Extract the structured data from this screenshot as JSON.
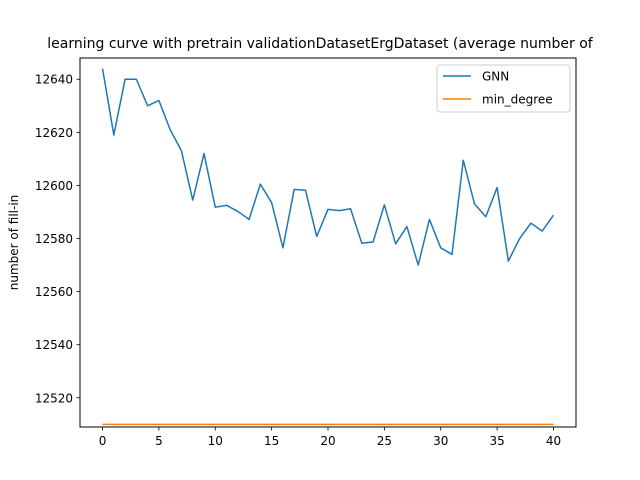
{
  "chart_data": {
    "type": "line",
    "title": "learning curve with pretrain validationDatasetErgDataset (average number of",
    "xlabel": "",
    "ylabel": "number of fill-in",
    "xlim": [
      -2,
      42
    ],
    "ylim": [
      12509,
      12648
    ],
    "xticks": [
      0,
      5,
      10,
      15,
      20,
      25,
      30,
      35,
      40
    ],
    "yticks": [
      12520,
      12540,
      12560,
      12580,
      12600,
      12620,
      12640
    ],
    "grid": false,
    "legend": "top-right",
    "x": [
      0,
      1,
      2,
      3,
      4,
      5,
      6,
      7,
      8,
      9,
      10,
      11,
      12,
      13,
      14,
      15,
      16,
      17,
      18,
      19,
      20,
      21,
      22,
      23,
      24,
      25,
      26,
      27,
      28,
      29,
      30,
      31,
      32,
      33,
      34,
      35,
      36,
      37,
      38,
      39,
      40
    ],
    "series": [
      {
        "name": "GNN",
        "color": "#1f77b4",
        "values": [
          12644,
          12619,
          12640,
          12640,
          12630,
          12632,
          12621,
          12613,
          12594.5,
          12612,
          12591.8,
          12592.5,
          12590.2,
          12587.2,
          12600.5,
          12593.5,
          12576.5,
          12598.5,
          12598.2,
          12580.8,
          12591,
          12590.5,
          12591.2,
          12578.2,
          12578.7,
          12592.7,
          12578,
          12584.5,
          12570,
          12587.2,
          12576.5,
          12574,
          12609.5,
          12593,
          12588.2,
          12599.2,
          12571.5,
          12580,
          12585.8,
          12582.8,
          12588.8
        ]
      },
      {
        "name": "min_degree",
        "color": "#ff7f0e",
        "values": [
          12510,
          12510,
          12510,
          12510,
          12510,
          12510,
          12510,
          12510,
          12510,
          12510,
          12510,
          12510,
          12510,
          12510,
          12510,
          12510,
          12510,
          12510,
          12510,
          12510,
          12510,
          12510,
          12510,
          12510,
          12510,
          12510,
          12510,
          12510,
          12510,
          12510,
          12510,
          12510,
          12510,
          12510,
          12510,
          12510,
          12510,
          12510,
          12510,
          12510,
          12510
        ]
      }
    ]
  }
}
